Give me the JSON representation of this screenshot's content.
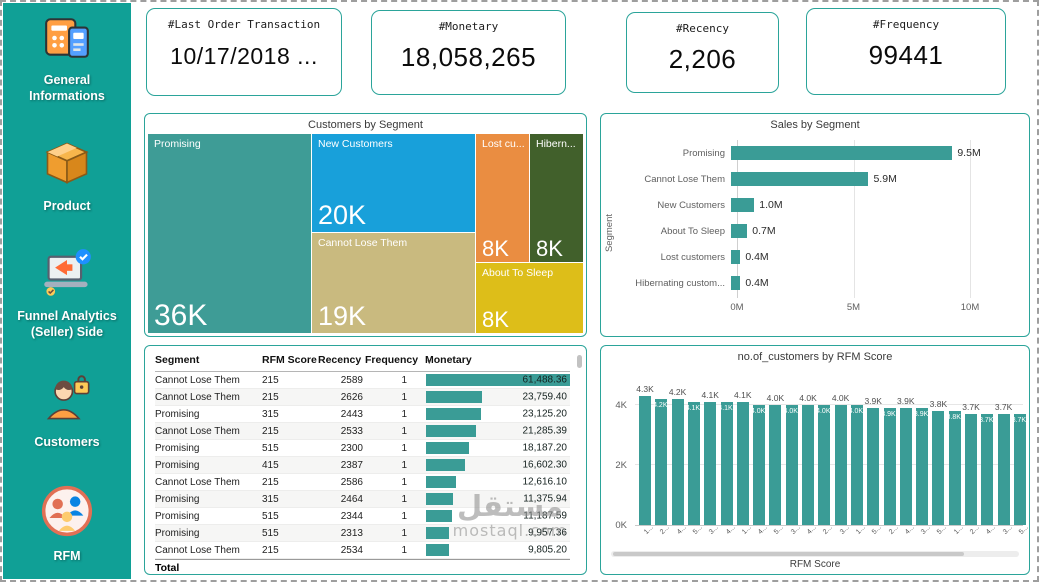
{
  "sidebar": {
    "items": [
      {
        "label": "General Informations"
      },
      {
        "label": "Product"
      },
      {
        "label": "Funnel Analytics (Seller) Side"
      },
      {
        "label": "Customers"
      },
      {
        "label": "RFM"
      }
    ]
  },
  "kpi_cards": [
    {
      "label": "#Last Order Transaction",
      "value": "10/17/2018 ..."
    },
    {
      "label": "#Monetary",
      "value": "18,058,265"
    },
    {
      "label": "#Recency",
      "value": "2,206"
    },
    {
      "label": "#Frequency",
      "value": "99441"
    }
  ],
  "colors": {
    "sidebar_bg": "#10A096",
    "panel_border": "#2BA49A",
    "bar_teal": "#3A9C96"
  },
  "watermark": {
    "brand_ar": "مستقل",
    "site": "mostaql.com"
  },
  "chart_data": [
    {
      "id": "customers_by_segment",
      "type": "treemap",
      "title": "Customers by Segment",
      "blocks": [
        {
          "label": "Promising",
          "value_label": "36K",
          "value": 36000,
          "color": "#3E9C96"
        },
        {
          "label": "New Customers",
          "value_label": "20K",
          "value": 20000,
          "color": "#18A0DA"
        },
        {
          "label": "Cannot Lose Them",
          "value_label": "19K",
          "value": 19000,
          "color": "#C9BA7F"
        },
        {
          "label": "Lost cu...",
          "value_label": "8K",
          "value": 8000,
          "color": "#EA8D41"
        },
        {
          "label": "Hibern...",
          "value_label": "8K",
          "value": 8000,
          "color": "#41602B"
        },
        {
          "label": "About To Sleep",
          "value_label": "8K",
          "value": 8000,
          "color": "#DDBE19"
        }
      ]
    },
    {
      "id": "sales_by_segment",
      "type": "bar",
      "orientation": "horizontal",
      "title": "Sales by Segment",
      "ylabel": "Segment",
      "xlabel": "",
      "categories": [
        "Promising",
        "Cannot Lose Them",
        "New Customers",
        "About To Sleep",
        "Lost customers",
        "Hibernating custom..."
      ],
      "values": [
        9.5,
        5.9,
        1.0,
        0.7,
        0.4,
        0.4
      ],
      "value_labels": [
        "9.5M",
        "5.9M",
        "1.0M",
        "0.7M",
        "0.4M",
        "0.4M"
      ],
      "x_ticks": [
        {
          "label": "0M",
          "value": 0
        },
        {
          "label": "5M",
          "value": 5
        },
        {
          "label": "10M",
          "value": 10
        }
      ],
      "xlim": [
        0,
        10
      ],
      "grid": true,
      "legend": false
    },
    {
      "id": "rfm_detail_table",
      "type": "table",
      "columns": [
        {
          "label": "Segment"
        },
        {
          "label": "RFM Score"
        },
        {
          "label": "Recency"
        },
        {
          "label": "Frequency"
        },
        {
          "label": "Monetary",
          "sorted": "desc"
        }
      ],
      "rows": [
        {
          "segment": "Cannot Lose Them",
          "rfm_score": "215",
          "recency": "2589",
          "frequency": "1",
          "monetary": "61,488.36",
          "monetary_value": 61488.36
        },
        {
          "segment": "Cannot Lose Them",
          "rfm_score": "215",
          "recency": "2626",
          "frequency": "1",
          "monetary": "23,759.40",
          "monetary_value": 23759.4
        },
        {
          "segment": "Promising",
          "rfm_score": "315",
          "recency": "2443",
          "frequency": "1",
          "monetary": "23,125.20",
          "monetary_value": 23125.2
        },
        {
          "segment": "Cannot Lose Them",
          "rfm_score": "215",
          "recency": "2533",
          "frequency": "1",
          "monetary": "21,285.39",
          "monetary_value": 21285.39
        },
        {
          "segment": "Promising",
          "rfm_score": "515",
          "recency": "2300",
          "frequency": "1",
          "monetary": "18,187.20",
          "monetary_value": 18187.2
        },
        {
          "segment": "Promising",
          "rfm_score": "415",
          "recency": "2387",
          "frequency": "1",
          "monetary": "16,602.30",
          "monetary_value": 16602.3
        },
        {
          "segment": "Cannot Lose Them",
          "rfm_score": "215",
          "recency": "2586",
          "frequency": "1",
          "monetary": "12,616.10",
          "monetary_value": 12616.1
        },
        {
          "segment": "Promising",
          "rfm_score": "315",
          "recency": "2464",
          "frequency": "1",
          "monetary": "11,375.94",
          "monetary_value": 11375.94
        },
        {
          "segment": "Promising",
          "rfm_score": "515",
          "recency": "2344",
          "frequency": "1",
          "monetary": "11,187.59",
          "monetary_value": 11187.59
        },
        {
          "segment": "Promising",
          "rfm_score": "515",
          "recency": "2313",
          "frequency": "1",
          "monetary": "9,957.36",
          "monetary_value": 9957.36
        },
        {
          "segment": "Cannot Lose Them",
          "rfm_score": "215",
          "recency": "2534",
          "frequency": "1",
          "monetary": "9,805.20",
          "monetary_value": 9805.2
        }
      ],
      "total_label": "Total"
    },
    {
      "id": "customers_by_rfm_score",
      "type": "bar",
      "orientation": "vertical",
      "title": "no.of_customers by RFM Score",
      "xlabel": "RFM Score",
      "ylabel": "",
      "y_ticks": [
        {
          "label": "0K",
          "value": 0
        },
        {
          "label": "2K",
          "value": 2
        },
        {
          "label": "4K",
          "value": 4
        }
      ],
      "ylim": [
        0,
        4.9
      ],
      "grid": true,
      "legend": false,
      "bars": [
        {
          "x": "1...",
          "value": 4.3,
          "label": "4.3K",
          "label_pos": "outside"
        },
        {
          "x": "2...",
          "value": 4.2,
          "label": "4.2K",
          "label_pos": "inside"
        },
        {
          "x": "4...",
          "value": 4.2,
          "label": "4.2K",
          "label_pos": "outside"
        },
        {
          "x": "5...",
          "value": 4.1,
          "label": "4.1K",
          "label_pos": "inside"
        },
        {
          "x": "3...",
          "value": 4.1,
          "label": "4.1K",
          "label_pos": "outside"
        },
        {
          "x": "4...",
          "value": 4.1,
          "label": "4.1K",
          "label_pos": "inside"
        },
        {
          "x": "1...",
          "value": 4.1,
          "label": "4.1K",
          "label_pos": "outside"
        },
        {
          "x": "4...",
          "value": 4.0,
          "label": "4.0K",
          "label_pos": "inside"
        },
        {
          "x": "5...",
          "value": 4.0,
          "label": "4.0K",
          "label_pos": "outside"
        },
        {
          "x": "3...",
          "value": 4.0,
          "label": "4.0K",
          "label_pos": "inside"
        },
        {
          "x": "4...",
          "value": 4.0,
          "label": "4.0K",
          "label_pos": "outside"
        },
        {
          "x": "2...",
          "value": 4.0,
          "label": "4.0K",
          "label_pos": "inside"
        },
        {
          "x": "3...",
          "value": 4.0,
          "label": "4.0K",
          "label_pos": "outside"
        },
        {
          "x": "1...",
          "value": 4.0,
          "label": "4.0K",
          "label_pos": "inside"
        },
        {
          "x": "5...",
          "value": 3.9,
          "label": "3.9K",
          "label_pos": "outside"
        },
        {
          "x": "2...",
          "value": 3.9,
          "label": "3.9K",
          "label_pos": "inside"
        },
        {
          "x": "4...",
          "value": 3.9,
          "label": "3.9K",
          "label_pos": "outside"
        },
        {
          "x": "3...",
          "value": 3.9,
          "label": "3.9K",
          "label_pos": "inside"
        },
        {
          "x": "5...",
          "value": 3.8,
          "label": "3.8K",
          "label_pos": "outside"
        },
        {
          "x": "1...",
          "value": 3.8,
          "label": "3.8K",
          "label_pos": "inside"
        },
        {
          "x": "2...",
          "value": 3.7,
          "label": "3.7K",
          "label_pos": "outside"
        },
        {
          "x": "4...",
          "value": 3.7,
          "label": "3.7K",
          "label_pos": "inside"
        },
        {
          "x": "3...",
          "value": 3.7,
          "label": "3.7K",
          "label_pos": "outside"
        },
        {
          "x": "5...",
          "value": 3.7,
          "label": "3.7K",
          "label_pos": "inside"
        }
      ]
    }
  ]
}
